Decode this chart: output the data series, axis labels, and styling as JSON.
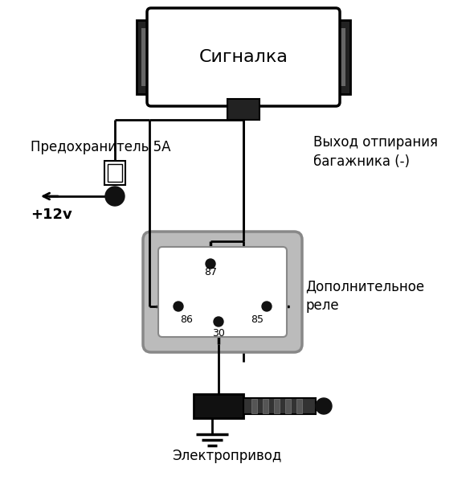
{
  "bg_color": "#ffffff",
  "line_color": "#000000",
  "dark_gray": "#555555",
  "title_signalka": "Сигналка",
  "label_fuse": "Предохранитель 5А",
  "label_plus12v": "+12v",
  "label_output": "Выход отпирания\nбагажника (-)",
  "label_relay": "Дополнительное\nреле",
  "label_drive": "Электропривод",
  "pin_87": "87",
  "pin_86": "86",
  "pin_85": "85",
  "pin_30": "30",
  "fig_width": 5.9,
  "fig_height": 6.23,
  "dpi": 100
}
